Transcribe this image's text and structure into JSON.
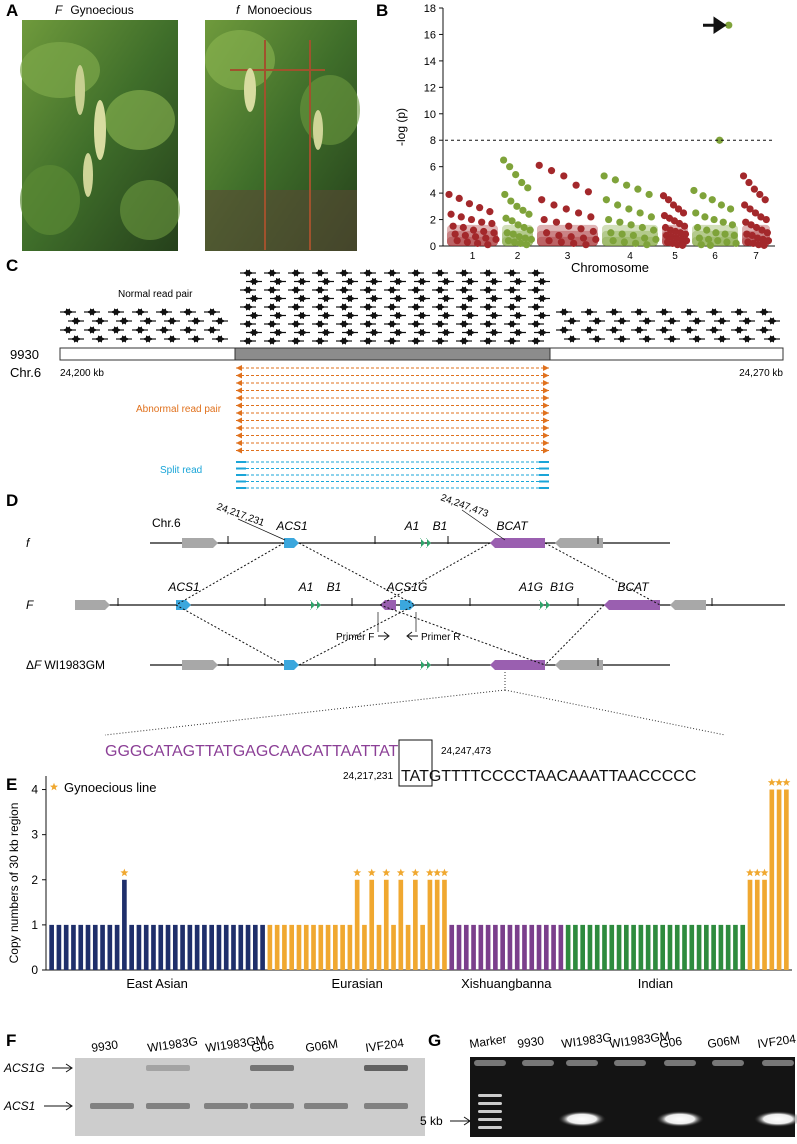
{
  "panel_labels": [
    "A",
    "B",
    "C",
    "D",
    "E",
    "F",
    "G"
  ],
  "panel_a": {
    "photos": [
      {
        "allele": "F",
        "phenotype": "Gynoecious"
      },
      {
        "allele": "f",
        "phenotype": "Monoecious"
      }
    ]
  },
  "chart_data": [
    {
      "type": "scatter",
      "y_label": "-log (p)",
      "x_label": "Chromosome",
      "ylim": [
        0,
        18
      ],
      "yticks": [
        0,
        2,
        4,
        6,
        8,
        10,
        12,
        14,
        16,
        18
      ],
      "threshold": 8,
      "chromosomes": [
        {
          "name": "1",
          "color": "#a3282b",
          "values": [
            3.9,
            3.6,
            3.2,
            2.9,
            2.6,
            2.4,
            2.2,
            2.0,
            1.8,
            1.7,
            1.5,
            1.4,
            1.2,
            1.1,
            1.0,
            0.9,
            0.8,
            0.7,
            0.6,
            0.5,
            0.4,
            0.3,
            0.2,
            0.1
          ]
        },
        {
          "name": "2",
          "color": "#7fa33a",
          "values": [
            6.5,
            6.0,
            5.4,
            4.8,
            4.4,
            3.9,
            3.4,
            3.0,
            2.7,
            2.4,
            2.1,
            1.9,
            1.6,
            1.4,
            1.2,
            1.0,
            0.9,
            0.7,
            0.6,
            0.5,
            0.4,
            0.3,
            0.2,
            0.1
          ]
        },
        {
          "name": "3",
          "color": "#a3282b",
          "values": [
            6.1,
            5.7,
            5.3,
            4.6,
            4.1,
            3.5,
            3.1,
            2.8,
            2.5,
            2.2,
            2.0,
            1.8,
            1.5,
            1.3,
            1.1,
            1.0,
            0.8,
            0.7,
            0.6,
            0.5,
            0.4,
            0.3,
            0.2,
            0.1
          ]
        },
        {
          "name": "4",
          "color": "#7fa33a",
          "values": [
            5.3,
            5.0,
            4.6,
            4.3,
            3.9,
            3.5,
            3.1,
            2.8,
            2.5,
            2.2,
            2.0,
            1.8,
            1.6,
            1.4,
            1.2,
            1.0,
            0.9,
            0.8,
            0.6,
            0.5,
            0.4,
            0.3,
            0.2,
            0.1
          ]
        },
        {
          "name": "5",
          "color": "#a3282b",
          "values": [
            3.8,
            3.5,
            3.1,
            2.8,
            2.5,
            2.3,
            2.1,
            1.9,
            1.7,
            1.5,
            1.4,
            1.2,
            1.1,
            1.0,
            0.9,
            0.8,
            0.7,
            0.6,
            0.5,
            0.4,
            0.3,
            0.2,
            0.1,
            0.05
          ]
        },
        {
          "name": "6",
          "color": "#7fa33a",
          "values": [
            4.2,
            3.8,
            3.5,
            3.1,
            2.8,
            2.5,
            2.2,
            2.0,
            1.8,
            1.6,
            1.4,
            1.2,
            1.0,
            0.9,
            0.8,
            0.6,
            0.5,
            0.4,
            0.3,
            0.2,
            0.1,
            0.05,
            8.0,
            16.7
          ]
        },
        {
          "name": "7",
          "color": "#a3282b",
          "values": [
            5.3,
            4.8,
            4.3,
            3.9,
            3.5,
            3.1,
            2.8,
            2.5,
            2.2,
            2.0,
            1.8,
            1.6,
            1.4,
            1.2,
            1.0,
            0.9,
            0.8,
            0.6,
            0.5,
            0.4,
            0.3,
            0.2,
            0.1,
            0.05
          ]
        }
      ]
    },
    {
      "type": "bar",
      "y_label": "Copy numbers of 30 kb region",
      "legend_label": "Gynoecious line",
      "legend_color": "#f0a830",
      "ylim": [
        0,
        4.3
      ],
      "yticks": [
        0,
        1,
        2,
        3,
        4
      ],
      "series": [
        {
          "name": "East Asian",
          "color": "#1f2f6b",
          "values": [
            1,
            1,
            1,
            1,
            1,
            1,
            1,
            1,
            1,
            1,
            2,
            1,
            1,
            1,
            1,
            1,
            1,
            1,
            1,
            1,
            1,
            1,
            1,
            1,
            1,
            1,
            1,
            1,
            1,
            1
          ],
          "gynoecious": [
            10
          ]
        },
        {
          "name": "Eurasian",
          "color": "#f0a830",
          "values": [
            1,
            1,
            1,
            1,
            1,
            1,
            1,
            1,
            1,
            1,
            1,
            1,
            2,
            1,
            2,
            1,
            2,
            1,
            2,
            1,
            2,
            1,
            2,
            2,
            2
          ],
          "gynoecious": [
            12,
            14,
            16,
            18,
            20,
            22,
            23,
            24
          ]
        },
        {
          "name": "Xishuangbanna",
          "color": "#7b3f8c",
          "values": [
            1,
            1,
            1,
            1,
            1,
            1,
            1,
            1,
            1,
            1,
            1,
            1,
            1,
            1,
            1,
            1
          ],
          "gynoecious": []
        },
        {
          "name": "Indian",
          "color": "#2e8b3e",
          "values": [
            1,
            1,
            1,
            1,
            1,
            1,
            1,
            1,
            1,
            1,
            1,
            1,
            1,
            1,
            1,
            1,
            1,
            1,
            1,
            1,
            1,
            1,
            1,
            1,
            1
          ],
          "gynoecious": []
        },
        {
          "name": null,
          "color": "#f0a830",
          "values": [
            2,
            2,
            2,
            4,
            4,
            4
          ],
          "gynoecious": [
            0,
            1,
            2,
            3,
            4,
            5
          ]
        }
      ]
    }
  ],
  "panel_c": {
    "normal_read_pair": "Normal read pair",
    "reference": "9930",
    "chromosome": "Chr.6",
    "start": "24,200 kb",
    "end": "24,270 kb",
    "abnormal_read_pair": "Abnormal read pair",
    "split_read": "Split read"
  },
  "panel_d": {
    "chromosome": "Chr.6",
    "coord_left": "24,217,231",
    "coord_right": "24,247,473",
    "rows": [
      {
        "allele": "f",
        "genes": [
          "ACS1",
          "A1",
          "B1",
          "BCAT"
        ]
      },
      {
        "allele": "F",
        "genes": [
          "ACS1",
          "A1",
          "B1",
          "ACS1G",
          "A1G",
          "B1G",
          "BCAT"
        ]
      },
      {
        "prefix": "Δ",
        "allele": "F",
        "name": "WI1983GM"
      }
    ],
    "primer_f": "Primer F",
    "primer_r": "Primer R",
    "sequence_top": "GGGCATAGTTATGAGCAACATTAAT",
    "junction_top": "TAT",
    "coord_top": "24,247,473",
    "coord_bottom": "24,217,231",
    "junction_bottom": "TAT",
    "sequence_bottom": "GTTTTCCCCTAACAAATTAACCCCC"
  },
  "panel_f": {
    "lanes": [
      "9930",
      "WI1983G",
      "WI1983GM",
      "G06",
      "G06M",
      "IVF204"
    ],
    "bands": [
      "ACS1G",
      "ACS1"
    ]
  },
  "panel_g": {
    "lanes": [
      "Marker",
      "9930",
      "WI1983G",
      "WI1983GM",
      "G06",
      "G06M",
      "IVF204"
    ],
    "size": "5 kb"
  }
}
